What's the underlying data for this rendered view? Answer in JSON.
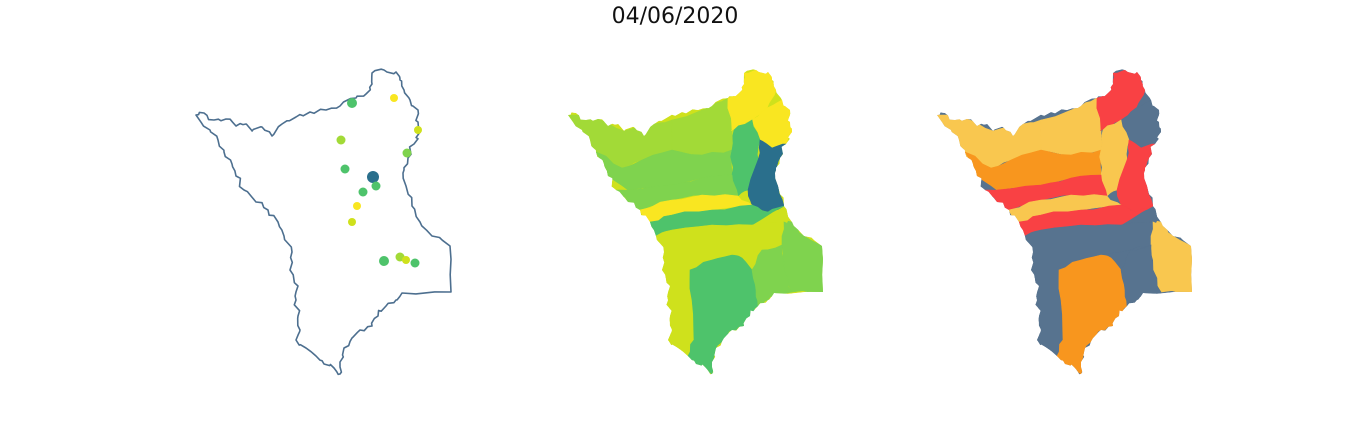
{
  "title": "04/06/2020",
  "colors": {
    "outline": "#4d6f8f",
    "viridis_dark": "#2a6f8c",
    "viridis_green": "#4ec36b",
    "viridis_lightgreen": "#7fd34e",
    "viridis_lime": "#a2da37",
    "viridis_yellowgreen": "#cfe11c",
    "viridis_yellow": "#f9e621",
    "risk_slate": "#57738f",
    "risk_red": "#f94144",
    "risk_orange": "#f8961e",
    "risk_lightorange": "#f9c74f"
  },
  "panels": [
    {
      "name": "stations",
      "points": [
        {
          "color": "#4ec36b"
        },
        {
          "color": "#f9e621"
        },
        {
          "color": "#cfe11c"
        },
        {
          "color": "#a2da37"
        },
        {
          "color": "#7fd34e"
        },
        {
          "color": "#4ec36b"
        },
        {
          "color": "#2a6f8c"
        },
        {
          "color": "#4ec36b"
        },
        {
          "color": "#4ec36b"
        },
        {
          "color": "#f9e621"
        },
        {
          "color": "#cfe11c"
        },
        {
          "color": "#4ec36b"
        },
        {
          "color": "#a2da37"
        },
        {
          "color": "#cfe11c"
        },
        {
          "color": "#4ec36b"
        }
      ]
    },
    {
      "name": "continuous-choropleth"
    },
    {
      "name": "categorical-choropleth"
    }
  ]
}
